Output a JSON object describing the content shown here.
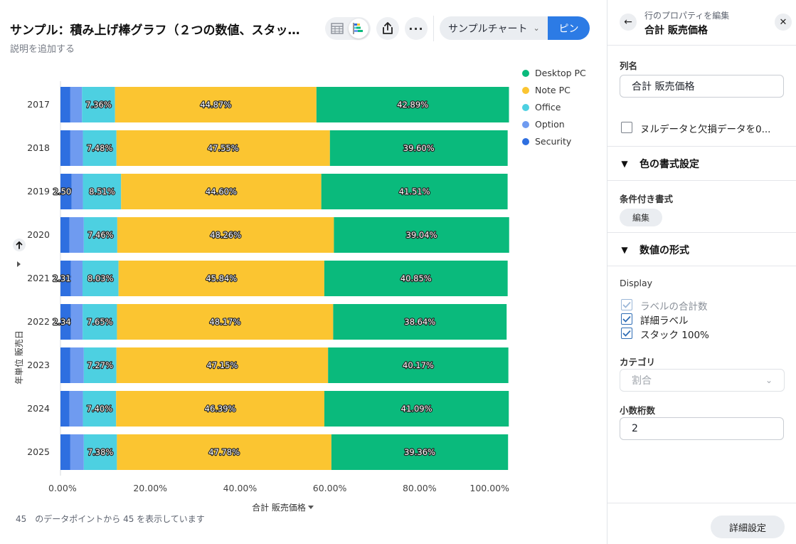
{
  "header": {
    "title": "サンプル：積み上げ棒グラフ（２つの数値、スタッ…",
    "description": "説明を追加する",
    "chart_select": "サンプルチャート",
    "pin_label": "ピン",
    "more_label": "···"
  },
  "footer": {
    "count_text": "45　のデータポイントから 45 を表示しています"
  },
  "colors": {
    "Security": "#2e6fe0",
    "Option": "#6f9bf0",
    "Office": "#4dd0e1",
    "Note PC": "#fbc531",
    "Desktop PC": "#0aba7c",
    "accent": "#2c7be5"
  },
  "chart_data": {
    "type": "bar",
    "orientation": "horizontal",
    "stacked": "percent",
    "categories": [
      "2017",
      "2018",
      "2019",
      "2020",
      "2021",
      "2022",
      "2023",
      "2024",
      "2025"
    ],
    "series": [
      {
        "name": "Security",
        "values": [
          2.2,
          2.2,
          2.5,
          2.0,
          2.31,
          2.34,
          2.2,
          2.0,
          2.2
        ],
        "labels": [
          "",
          "",
          "2.50%",
          "",
          "2.31%",
          "2.34%",
          "",
          "",
          ""
        ]
      },
      {
        "name": "Option",
        "values": [
          2.6,
          2.8,
          2.5,
          3.2,
          2.6,
          2.6,
          3.0,
          3.0,
          3.0
        ],
        "labels": [
          "",
          "",
          "",
          "",
          "",
          "",
          "",
          "",
          ""
        ]
      },
      {
        "name": "Office",
        "values": [
          7.36,
          7.48,
          8.51,
          7.46,
          8.03,
          7.65,
          7.27,
          7.4,
          7.38
        ],
        "labels": [
          "7.36%",
          "7.48%",
          "8.51%",
          "7.46%",
          "8.03%",
          "7.65%",
          "7.27%",
          "7.40%",
          "7.38%"
        ]
      },
      {
        "name": "Note PC",
        "values": [
          44.87,
          47.55,
          44.6,
          48.26,
          45.84,
          48.17,
          47.15,
          46.39,
          47.78
        ],
        "labels": [
          "44.87%",
          "47.55%",
          "44.60%",
          "48.26%",
          "45.84%",
          "48.17%",
          "47.15%",
          "46.39%",
          "47.78%"
        ]
      },
      {
        "name": "Desktop PC",
        "values": [
          42.89,
          39.6,
          41.51,
          39.04,
          40.85,
          38.64,
          40.17,
          41.09,
          39.36
        ],
        "labels": [
          "42.89%",
          "39.60%",
          "41.51%",
          "39.04%",
          "40.85%",
          "38.64%",
          "40.17%",
          "41.09%",
          "39.36%"
        ]
      }
    ],
    "legend": [
      "Desktop PC",
      "Note PC",
      "Office",
      "Option",
      "Security"
    ],
    "legend_position": "right",
    "xlabel": "合計 販売価格",
    "ylabel": "年単位 販売日",
    "xlim": [
      0,
      100
    ],
    "xticks": [
      "0.00%",
      "20.00%",
      "40.00%",
      "60.00%",
      "80.00%",
      "100.00%"
    ],
    "grid": false
  },
  "panel": {
    "subtitle": "行のプロパティを編集",
    "title": "合計 販売価格",
    "column_name_label": "列名",
    "column_name_value": "合計 販売価格",
    "null_checkbox_label": "ヌルデータと欠損データを0...",
    "color_section": "色の書式設定",
    "conditional_label": "条件付き書式",
    "edit_button": "編集",
    "number_section": "数値の形式",
    "display_label": "Display",
    "options": [
      {
        "label": "ラベルの合計数",
        "checked": true,
        "disabled": true
      },
      {
        "label": "詳細ラベル",
        "checked": true,
        "disabled": false
      },
      {
        "label": "スタック 100%",
        "checked": true,
        "disabled": false
      }
    ],
    "category_label": "カテゴリ",
    "category_value": "割合",
    "decimals_label": "小数桁数",
    "decimals_value": "2",
    "advanced_button": "詳細設定"
  }
}
